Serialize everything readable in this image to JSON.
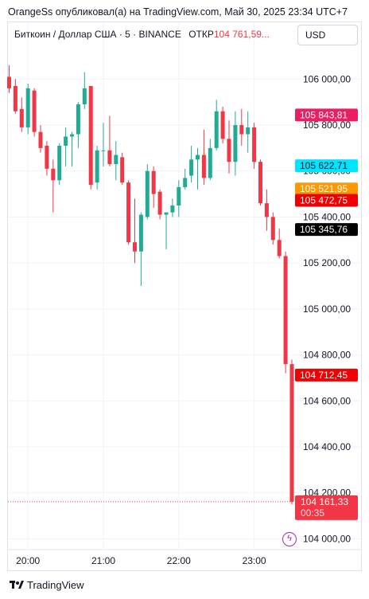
{
  "header": {
    "publish_text": "OrangeSs опубликовал(а) на TradingView.com, Май 30, 2025 23:34 UTC+7",
    "symbol_text": "Биткоин / Доллар США · 5 · BINANCE",
    "open_label": "ОТКР",
    "open_value": "104 761,59...",
    "currency": "USD"
  },
  "footer": {
    "brand": "TradingView"
  },
  "icons": {
    "brand_logo": "tradingview-logo-icon",
    "time_tool": "lightning-clock-icon"
  },
  "colors": {
    "up": "#22ab94",
    "down": "#f23645",
    "grid": "#f0f3fa",
    "text": "#131722",
    "label_pink": "#e91e63",
    "label_cyan": "#00e5ff",
    "label_orange": "#ff9800",
    "label_red": "#f00000",
    "label_black": "#000000",
    "label_last": "#f23645"
  },
  "chart_data": {
    "type": "candlestick",
    "symbol": "BTC/USD",
    "interval": "5",
    "exchange": "BINANCE",
    "ylim": [
      103960,
      106150
    ],
    "y_ticks": [
      {
        "value": 104000,
        "label": "104 000,00"
      },
      {
        "value": 104200,
        "label": "104 200,00"
      },
      {
        "value": 104400,
        "label": "104 400,00"
      },
      {
        "value": 104600,
        "label": "104 600,00"
      },
      {
        "value": 104800,
        "label": "104 800,00"
      },
      {
        "value": 105000,
        "label": "105 000,00"
      },
      {
        "value": 105200,
        "label": "105 200,00"
      },
      {
        "value": 105400,
        "label": "105 400,00"
      },
      {
        "value": 105600,
        "label": "105 600,00"
      },
      {
        "value": 105800,
        "label": "105 800,00"
      },
      {
        "value": 106000,
        "label": "106 000,00"
      }
    ],
    "x_ticks": [
      {
        "index": 3,
        "label": "20:00"
      },
      {
        "index": 15,
        "label": "21:00"
      },
      {
        "index": 27,
        "label": "22:00"
      },
      {
        "index": 39,
        "label": "23:00"
      }
    ],
    "price_labels": [
      {
        "value": 105843.81,
        "text": "105 843,81",
        "color": "#e91e63",
        "text_color": "#ffffff"
      },
      {
        "value": 105622.71,
        "text": "105 622,71",
        "color": "#00e5ff",
        "text_color": "#131722"
      },
      {
        "value": 105521.95,
        "text": "105 521,95",
        "color": "#ff9800",
        "text_color": "#ffffff"
      },
      {
        "value": 105472.75,
        "text": "105 472,75",
        "color": "#f00000",
        "text_color": "#ffffff"
      },
      {
        "value": 105345.76,
        "text": "105 345,76",
        "color": "#000000",
        "text_color": "#ffffff"
      },
      {
        "value": 104712.45,
        "text": "104 712,45",
        "color": "#f00000",
        "text_color": "#ffffff"
      }
    ],
    "last_price": {
      "value": 104161.33,
      "text": "104 161,33",
      "countdown": "00:35"
    },
    "candles": [
      {
        "o": 106010,
        "h": 106060,
        "l": 105940,
        "c": 105960
      },
      {
        "o": 105970,
        "h": 106000,
        "l": 105850,
        "c": 105860
      },
      {
        "o": 105870,
        "h": 105920,
        "l": 105770,
        "c": 105790
      },
      {
        "o": 105790,
        "h": 105980,
        "l": 105760,
        "c": 105960
      },
      {
        "o": 105950,
        "h": 105960,
        "l": 105750,
        "c": 105770
      },
      {
        "o": 105770,
        "h": 105800,
        "l": 105680,
        "c": 105700
      },
      {
        "o": 105710,
        "h": 105730,
        "l": 105580,
        "c": 105610
      },
      {
        "o": 105610,
        "h": 105650,
        "l": 105420,
        "c": 105560
      },
      {
        "o": 105560,
        "h": 105720,
        "l": 105540,
        "c": 105710
      },
      {
        "o": 105710,
        "h": 105790,
        "l": 105620,
        "c": 105750
      },
      {
        "o": 105750,
        "h": 105770,
        "l": 105620,
        "c": 105760
      },
      {
        "o": 105760,
        "h": 105900,
        "l": 105700,
        "c": 105890
      },
      {
        "o": 105890,
        "h": 106030,
        "l": 105870,
        "c": 105960
      },
      {
        "o": 105970,
        "h": 105970,
        "l": 105520,
        "c": 105540
      },
      {
        "o": 105550,
        "h": 105710,
        "l": 105520,
        "c": 105690
      },
      {
        "o": 105690,
        "h": 105810,
        "l": 105620,
        "c": 105690
      },
      {
        "o": 105690,
        "h": 105840,
        "l": 105620,
        "c": 105630
      },
      {
        "o": 105630,
        "h": 105730,
        "l": 105560,
        "c": 105670
      },
      {
        "o": 105660,
        "h": 105680,
        "l": 105540,
        "c": 105550
      },
      {
        "o": 105550,
        "h": 105560,
        "l": 105280,
        "c": 105290
      },
      {
        "o": 105290,
        "h": 105480,
        "l": 105200,
        "c": 105250
      },
      {
        "o": 105250,
        "h": 105420,
        "l": 105100,
        "c": 105410
      },
      {
        "o": 105400,
        "h": 105630,
        "l": 105390,
        "c": 105600
      },
      {
        "o": 105600,
        "h": 105620,
        "l": 105440,
        "c": 105500
      },
      {
        "o": 105510,
        "h": 105520,
        "l": 105390,
        "c": 105410
      },
      {
        "o": 105410,
        "h": 105420,
        "l": 105260,
        "c": 105420
      },
      {
        "o": 105420,
        "h": 105480,
        "l": 105400,
        "c": 105450
      },
      {
        "o": 105450,
        "h": 105560,
        "l": 105400,
        "c": 105530
      },
      {
        "o": 105530,
        "h": 105610,
        "l": 105520,
        "c": 105570
      },
      {
        "o": 105580,
        "h": 105710,
        "l": 105550,
        "c": 105650
      },
      {
        "o": 105650,
        "h": 105700,
        "l": 105520,
        "c": 105670
      },
      {
        "o": 105670,
        "h": 105780,
        "l": 105540,
        "c": 105570
      },
      {
        "o": 105570,
        "h": 105740,
        "l": 105560,
        "c": 105700
      },
      {
        "o": 105700,
        "h": 105910,
        "l": 105690,
        "c": 105860
      },
      {
        "o": 105860,
        "h": 105880,
        "l": 105720,
        "c": 105740
      },
      {
        "o": 105740,
        "h": 105820,
        "l": 105590,
        "c": 105640
      },
      {
        "o": 105640,
        "h": 105860,
        "l": 105580,
        "c": 105800
      },
      {
        "o": 105800,
        "h": 105870,
        "l": 105710,
        "c": 105760
      },
      {
        "o": 105760,
        "h": 105860,
        "l": 105680,
        "c": 105790
      },
      {
        "o": 105790,
        "h": 105810,
        "l": 105610,
        "c": 105640
      },
      {
        "o": 105640,
        "h": 105650,
        "l": 105450,
        "c": 105460
      },
      {
        "o": 105460,
        "h": 105520,
        "l": 105340,
        "c": 105400
      },
      {
        "o": 105400,
        "h": 105420,
        "l": 105280,
        "c": 105300
      },
      {
        "o": 105300,
        "h": 105350,
        "l": 105220,
        "c": 105230
      },
      {
        "o": 105230,
        "h": 105250,
        "l": 104720,
        "c": 104760
      },
      {
        "o": 104760,
        "h": 104780,
        "l": 104150,
        "c": 104161.33
      }
    ]
  }
}
